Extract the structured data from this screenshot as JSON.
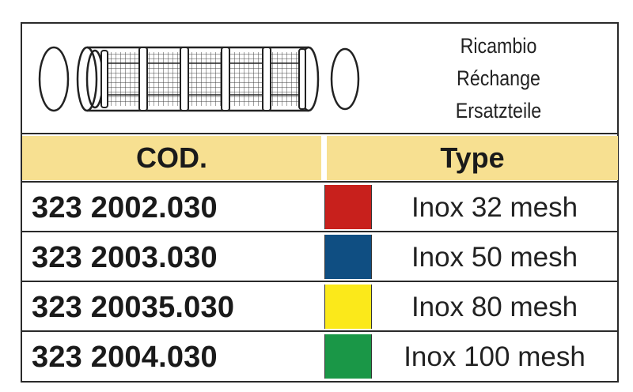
{
  "labels": [
    "Ricambio",
    "Réchange",
    "Ersatzteile"
  ],
  "header": {
    "code": "COD.",
    "type": "Type"
  },
  "rows": [
    {
      "code": "323 2002.030",
      "type": "Inox 32 mesh",
      "color": "#c8201c"
    },
    {
      "code": "323 2003.030",
      "type": "Inox 50 mesh",
      "color": "#0f4e82"
    },
    {
      "code": "323 20035.030",
      "type": "Inox 80 mesh",
      "color": "#fbe91a"
    },
    {
      "code": "323 2004.030",
      "type": "Inox 100 mesh",
      "color": "#1a9747"
    }
  ]
}
